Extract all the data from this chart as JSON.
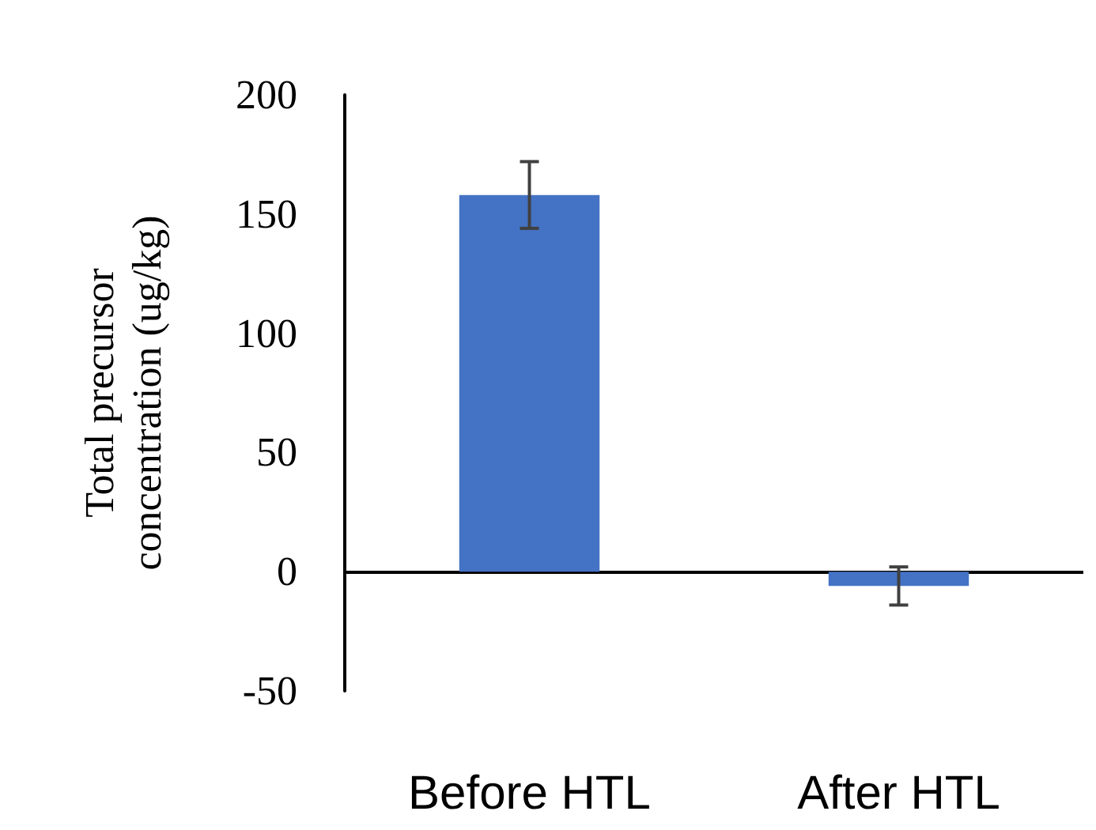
{
  "chart_data": {
    "type": "bar",
    "ylabel": "Total precursor\nconcentration (ug/kg)",
    "categories": [
      "Before HTL",
      "After HTL"
    ],
    "values": [
      158,
      -6
    ],
    "errors": [
      14,
      8
    ],
    "color": "#4472c4",
    "ylim": [
      -50,
      200
    ],
    "yticks": [
      -50,
      0,
      50,
      100,
      150,
      200
    ]
  }
}
